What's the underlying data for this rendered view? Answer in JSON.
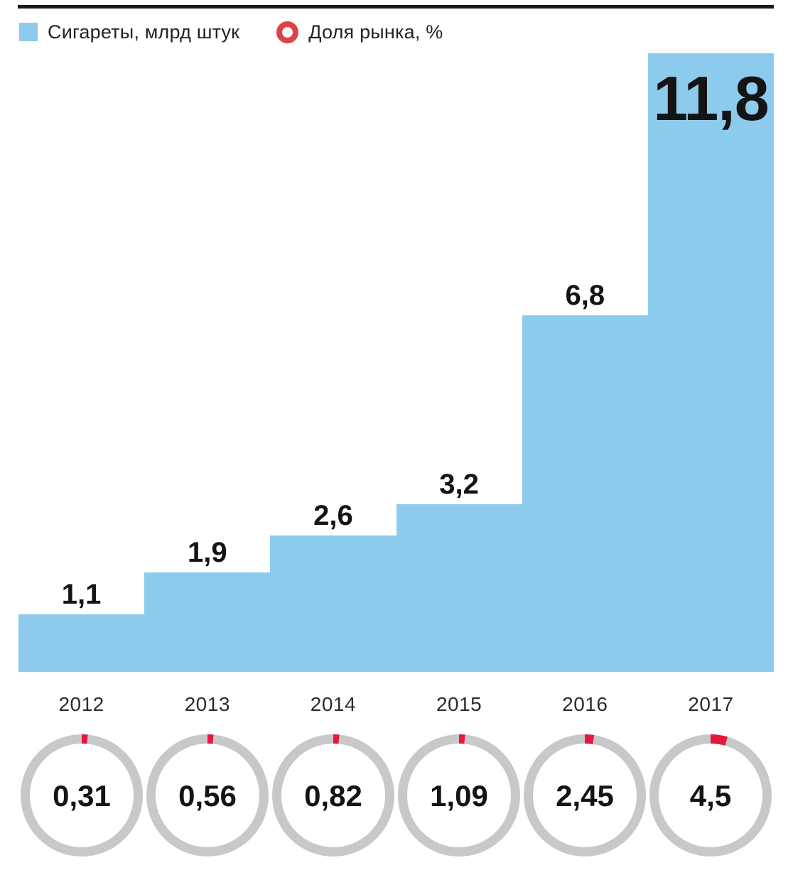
{
  "legend": {
    "bars_label": "Сигареты, млрд штук",
    "share_label": "Доля рынка, %"
  },
  "chart_data": {
    "type": "bar",
    "categories": [
      "2012",
      "2013",
      "2014",
      "2015",
      "2016",
      "2017"
    ],
    "series": [
      {
        "name": "Сигареты, млрд штук",
        "values": [
          1.1,
          1.9,
          2.6,
          3.2,
          6.8,
          11.8
        ],
        "labels": [
          "1,1",
          "1,9",
          "2,6",
          "3,2",
          "6,8",
          "11,8"
        ]
      },
      {
        "name": "Доля рынка, %",
        "values": [
          0.31,
          0.56,
          0.82,
          1.09,
          2.45,
          4.5
        ],
        "labels": [
          "0,31",
          "0,56",
          "0,82",
          "1,09",
          "2,45",
          "4,5"
        ]
      }
    ],
    "ylim": [
      0,
      11.8
    ],
    "grid": false,
    "legend_position": "top",
    "bar_style": "contiguous-steps",
    "share_display": "donut-ring-per-year"
  },
  "colors": {
    "bar_blue": "#8dcbed",
    "ring_gray": "#c8c8c8",
    "arc_red": "#e4183c",
    "legend_ring_red": "#e04048",
    "rule_black": "#1a1a1a",
    "text_dark": "#141414"
  }
}
